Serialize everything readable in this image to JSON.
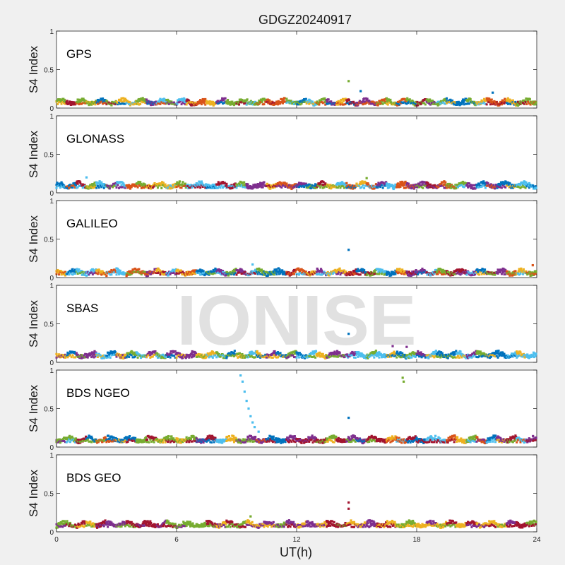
{
  "chart_data": {
    "type": "scatter",
    "title": "GDGZ20240917",
    "xlabel": "UT(h)",
    "ylabel": "S4 Index",
    "xlim": [
      0,
      24
    ],
    "ylim": [
      0,
      1
    ],
    "xticks": [
      "0",
      "6",
      "12",
      "18",
      "24"
    ],
    "yticks": [
      "0",
      "0.5",
      "1"
    ],
    "grid": false,
    "watermark": "IONISE",
    "colors": {
      "blue": "#0072bd",
      "orange": "#d95319",
      "yellow": "#edb120",
      "purple": "#7e2f8e",
      "green": "#77ac30",
      "cyan": "#4dbeee",
      "red": "#a2142f"
    },
    "panels": [
      {
        "system": "GPS",
        "baseline": 0.08,
        "colors": [
          "blue",
          "orange",
          "yellow",
          "purple",
          "green",
          "cyan",
          "red"
        ],
        "spikes": [
          {
            "x": 14.6,
            "y": 0.35,
            "color": "green"
          },
          {
            "x": 15.2,
            "y": 0.22,
            "color": "blue"
          },
          {
            "x": 21.8,
            "y": 0.2,
            "color": "blue"
          }
        ]
      },
      {
        "system": "GLONASS",
        "baseline": 0.1,
        "colors": [
          "blue",
          "orange",
          "yellow",
          "purple",
          "green",
          "cyan",
          "red"
        ],
        "spikes": [
          {
            "x": 1.5,
            "y": 0.2,
            "color": "cyan"
          },
          {
            "x": 15.5,
            "y": 0.19,
            "color": "green"
          }
        ]
      },
      {
        "system": "GALILEO",
        "baseline": 0.07,
        "colors": [
          "blue",
          "orange",
          "yellow",
          "purple",
          "green",
          "cyan",
          "red"
        ],
        "spikes": [
          {
            "x": 14.6,
            "y": 0.36,
            "color": "blue"
          },
          {
            "x": 9.8,
            "y": 0.17,
            "color": "cyan"
          },
          {
            "x": 23.8,
            "y": 0.16,
            "color": "orange"
          }
        ]
      },
      {
        "system": "SBAS",
        "baseline": 0.1,
        "colors": [
          "blue",
          "purple",
          "cyan",
          "yellow",
          "green"
        ],
        "spikes": [
          {
            "x": 14.6,
            "y": 0.37,
            "color": "blue"
          },
          {
            "x": 16.8,
            "y": 0.21,
            "color": "purple"
          },
          {
            "x": 17.5,
            "y": 0.2,
            "color": "purple"
          }
        ]
      },
      {
        "system": "BDS NGEO",
        "baseline": 0.1,
        "colors": [
          "blue",
          "orange",
          "yellow",
          "purple",
          "green",
          "cyan",
          "red"
        ],
        "spikes": [
          {
            "x": 9.2,
            "y": 0.93,
            "color": "cyan"
          },
          {
            "x": 9.3,
            "y": 0.85,
            "color": "cyan"
          },
          {
            "x": 9.4,
            "y": 0.72,
            "color": "cyan"
          },
          {
            "x": 9.5,
            "y": 0.6,
            "color": "cyan"
          },
          {
            "x": 9.6,
            "y": 0.5,
            "color": "cyan"
          },
          {
            "x": 9.7,
            "y": 0.4,
            "color": "cyan"
          },
          {
            "x": 9.8,
            "y": 0.32,
            "color": "cyan"
          },
          {
            "x": 9.9,
            "y": 0.26,
            "color": "cyan"
          },
          {
            "x": 10.1,
            "y": 0.2,
            "color": "cyan"
          },
          {
            "x": 14.6,
            "y": 0.38,
            "color": "blue"
          },
          {
            "x": 17.3,
            "y": 0.9,
            "color": "green"
          },
          {
            "x": 17.35,
            "y": 0.85,
            "color": "green"
          }
        ]
      },
      {
        "system": "BDS GEO",
        "baseline": 0.1,
        "colors": [
          "purple",
          "yellow",
          "green",
          "red"
        ],
        "spikes": [
          {
            "x": 14.6,
            "y": 0.38,
            "color": "red"
          },
          {
            "x": 14.6,
            "y": 0.3,
            "color": "red"
          },
          {
            "x": 9.7,
            "y": 0.2,
            "color": "green"
          }
        ]
      }
    ]
  }
}
